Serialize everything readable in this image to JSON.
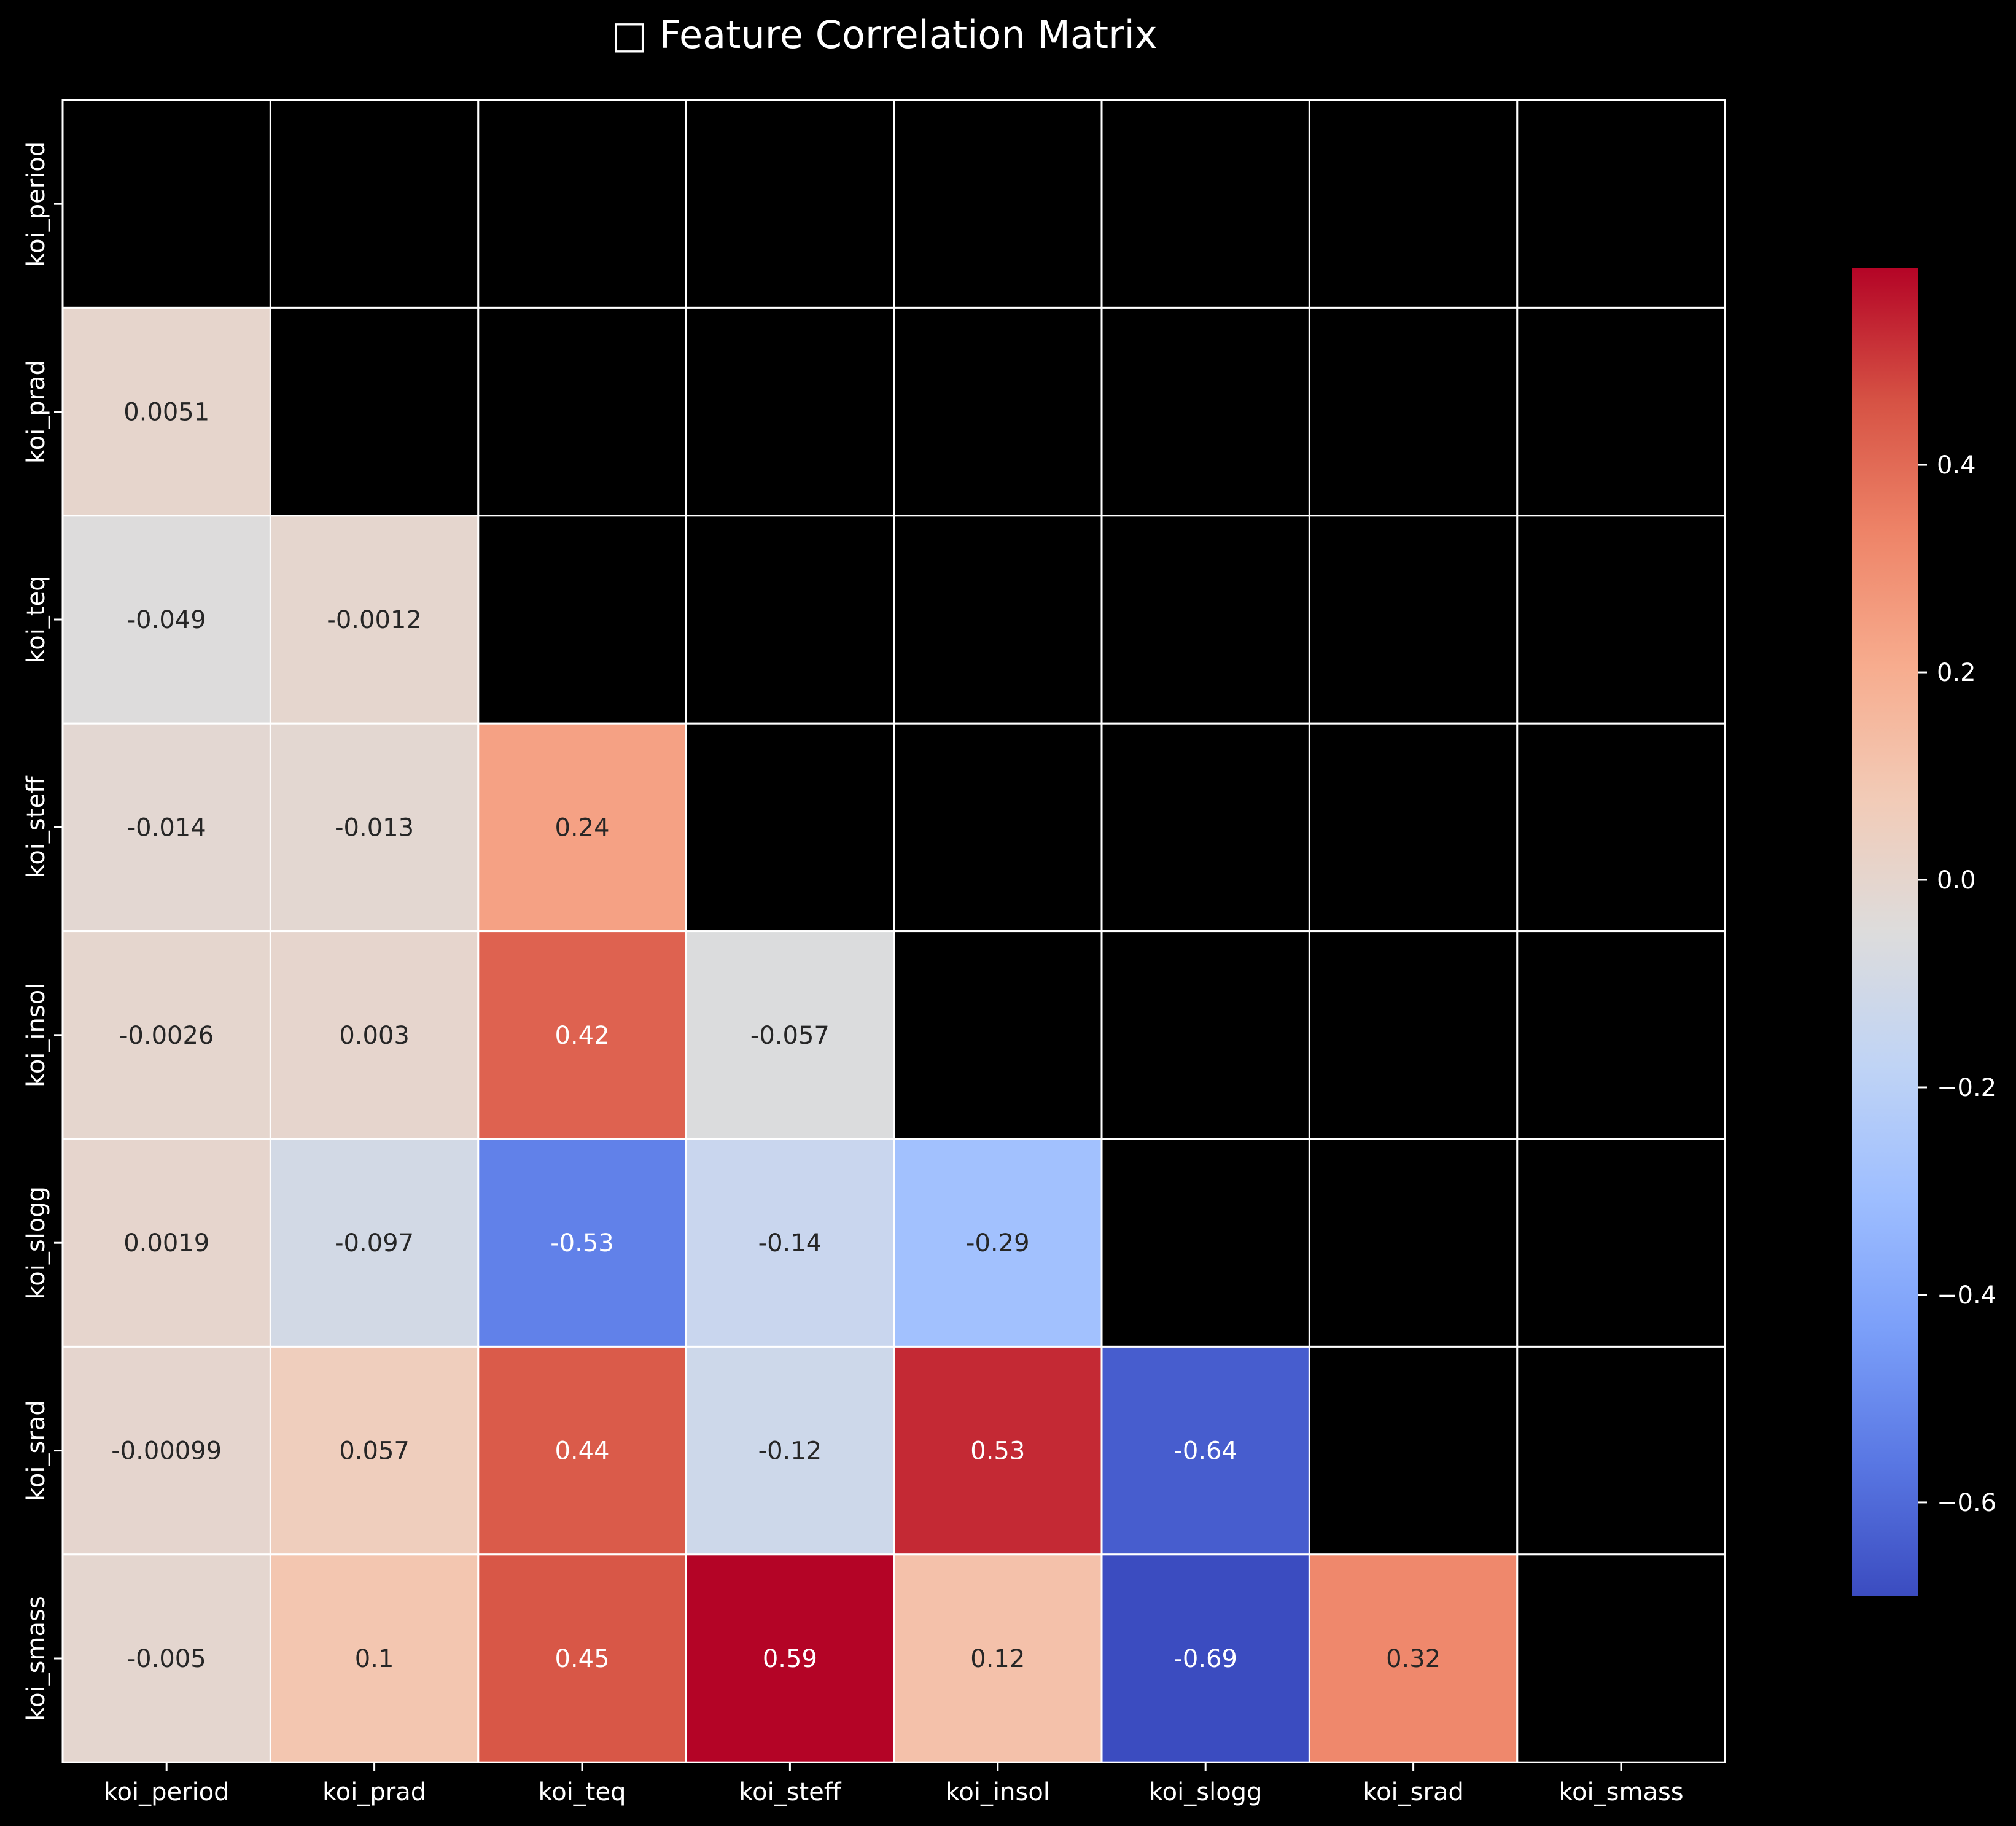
{
  "chart_data": {
    "type": "heatmap",
    "title": "□ Feature Correlation Matrix",
    "row_labels": [
      "koi_period",
      "koi_prad",
      "koi_teq",
      "koi_steff",
      "koi_insol",
      "koi_slogg",
      "koi_srad",
      "koi_smass"
    ],
    "col_labels": [
      "koi_period",
      "koi_prad",
      "koi_teq",
      "koi_steff",
      "koi_insol",
      "koi_slogg",
      "koi_srad",
      "koi_smass"
    ],
    "mask": "upper triangle including diagonal",
    "values": [
      [
        null,
        null,
        null,
        null,
        null,
        null,
        null,
        null
      ],
      [
        0.0051,
        null,
        null,
        null,
        null,
        null,
        null,
        null
      ],
      [
        -0.049,
        -0.0012,
        null,
        null,
        null,
        null,
        null,
        null
      ],
      [
        -0.014,
        -0.013,
        0.24,
        null,
        null,
        null,
        null,
        null
      ],
      [
        -0.0026,
        0.003,
        0.42,
        -0.057,
        null,
        null,
        null,
        null
      ],
      [
        0.0019,
        -0.097,
        -0.53,
        -0.14,
        -0.29,
        null,
        null,
        null
      ],
      [
        -0.00099,
        0.057,
        0.44,
        -0.12,
        0.53,
        -0.64,
        null,
        null
      ],
      [
        -0.005,
        0.1,
        0.45,
        0.59,
        0.12,
        -0.69,
        0.32,
        null
      ]
    ],
    "annotations": [
      [
        "",
        "",
        "",
        "",
        "",
        "",
        "",
        ""
      ],
      [
        "0.0051",
        "",
        "",
        "",
        "",
        "",
        "",
        ""
      ],
      [
        "-0.049",
        "-0.0012",
        "",
        "",
        "",
        "",
        "",
        ""
      ],
      [
        "-0.014",
        "-0.013",
        "0.24",
        "",
        "",
        "",
        "",
        ""
      ],
      [
        "-0.0026",
        "0.003",
        "0.42",
        "-0.057",
        "",
        "",
        "",
        ""
      ],
      [
        "0.0019",
        "-0.097",
        "-0.53",
        "-0.14",
        "-0.29",
        "",
        "",
        ""
      ],
      [
        "-0.00099",
        "0.057",
        "0.44",
        "-0.12",
        "0.53",
        "-0.64",
        "",
        ""
      ],
      [
        "-0.005",
        "0.1",
        "0.45",
        "0.59",
        "0.12",
        "-0.69",
        "0.32",
        ""
      ]
    ],
    "colormap": "coolwarm",
    "colormap_stops": [
      "#3b4cc0",
      "#5977e3",
      "#7b9ff9",
      "#9ebeff",
      "#c0d4f5",
      "#dddcdc",
      "#f2cbb7",
      "#f7ac8e",
      "#ee8468",
      "#d65244",
      "#b40426"
    ],
    "vmin": -0.69,
    "vmax": 0.59,
    "colorbar_ticks": [
      0.4,
      0.2,
      0.0,
      -0.2,
      -0.4,
      -0.6
    ],
    "colorbar_tick_labels": [
      "0.4",
      "0.2",
      "0.0",
      "−0.2",
      "−0.4",
      "−0.6"
    ],
    "background_color": "#000000",
    "grid_line_color": "#ffffff",
    "text_color": "#ffffff"
  }
}
